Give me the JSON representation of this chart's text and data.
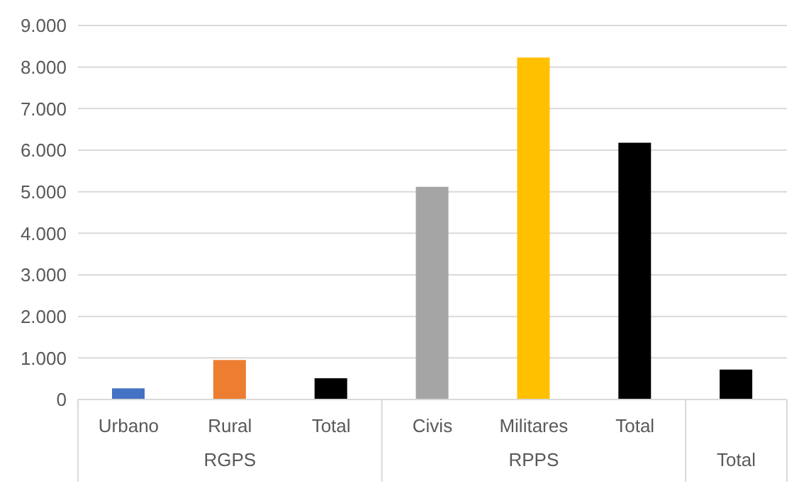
{
  "chart_data": {
    "type": "bar",
    "categories": [
      "Urbano",
      "Rural",
      "Total",
      "Civis",
      "Militares",
      "Total",
      null
    ],
    "values": [
      270,
      950,
      510,
      5120,
      8230,
      6180,
      720
    ],
    "colors": [
      "#4472c4",
      "#ed7d31",
      "#000000",
      "#a5a5a5",
      "#ffc000",
      "#000000",
      "#000000"
    ],
    "ylim": [
      0,
      9000
    ],
    "yticks": [
      {
        "value": 0,
        "label": "0"
      },
      {
        "value": 1000,
        "label": "1.000"
      },
      {
        "value": 2000,
        "label": "2.000"
      },
      {
        "value": 3000,
        "label": "3.000"
      },
      {
        "value": 4000,
        "label": "4.000"
      },
      {
        "value": 5000,
        "label": "5.000"
      },
      {
        "value": 6000,
        "label": "6.000"
      },
      {
        "value": 7000,
        "label": "7.000"
      },
      {
        "value": 8000,
        "label": "8.000"
      },
      {
        "value": 9000,
        "label": "9.000"
      }
    ],
    "annotations": [
      "RGPS",
      "RPPS",
      "Total"
    ],
    "grid": "y",
    "legend": false
  }
}
